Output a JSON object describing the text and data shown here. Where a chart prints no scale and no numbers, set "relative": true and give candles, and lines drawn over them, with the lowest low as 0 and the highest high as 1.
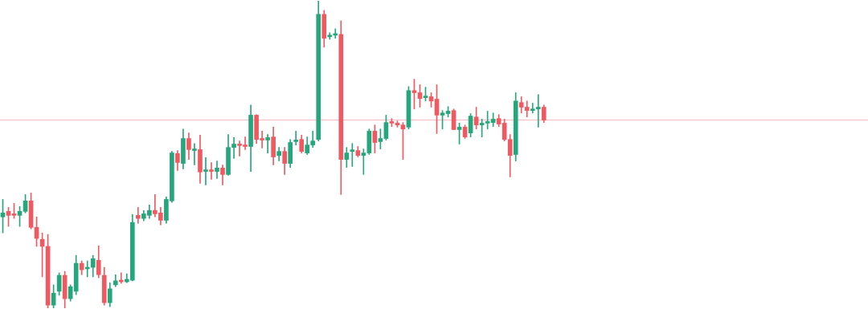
{
  "chart_data": {
    "type": "candlestick",
    "relative": true,
    "categories": [
      null,
      null,
      null,
      null,
      null,
      null,
      null,
      null,
      null,
      null,
      null,
      null,
      null,
      null,
      null,
      null,
      null,
      null,
      null,
      null,
      null,
      null,
      null,
      null,
      null,
      null,
      null,
      null,
      null,
      null,
      null,
      null,
      null,
      null,
      null,
      null,
      null,
      null,
      null,
      null,
      null,
      null,
      null,
      null,
      null,
      null,
      null,
      null,
      null,
      null,
      null,
      null,
      null,
      null,
      null,
      null,
      null,
      null,
      null,
      null,
      null,
      null,
      null,
      null,
      null,
      null,
      null,
      null,
      null,
      null,
      null,
      null,
      null,
      null,
      null,
      null,
      null,
      null,
      null,
      null,
      null,
      null,
      null,
      null,
      null,
      null,
      null,
      null,
      null,
      null,
      null,
      null,
      null,
      null,
      null,
      null,
      null,
      null,
      null,
      null,
      null,
      null,
      null,
      null,
      null,
      null,
      null,
      null,
      null,
      null,
      null,
      null,
      null,
      null,
      null,
      null,
      null,
      null,
      null,
      null,
      null,
      null,
      null,
      null,
      null,
      null,
      null,
      null,
      null,
      null,
      null,
      null,
      null,
      null,
      null,
      null,
      null,
      null,
      null,
      null,
      null,
      null,
      null,
      null,
      null,
      null,
      null,
      null,
      null,
      null,
      null,
      null,
      null,
      null
    ],
    "colors": [
      "#26a67c",
      "#ef5a62",
      "#ef5a62",
      "#26a67c",
      "#26a67c",
      "#ef5a62",
      "#ef5a62",
      "#ef5a62",
      "#ef5a62",
      "#26a67c",
      "#26a67c",
      "#ef5a62",
      "#26a67c",
      "#26a67c",
      "#ef5a62",
      "#26a67c",
      "#26a67c",
      "#ef5a62",
      "#ef5a62",
      "#26a67c",
      "#26a67c",
      "#ef5a62",
      "#26a67c",
      "#26a67c",
      "#ef5a62",
      "#26a67c",
      "#26a67c",
      "#ef5a62",
      "#ef5a62",
      "#26a67c",
      "#26a67c",
      "#ef5a62",
      "#26a67c",
      "#ef5a62",
      "#26a67c",
      "#ef5a62",
      "#26a67c",
      "#ef5a62",
      "#26a67c",
      "#ef5a62",
      "#26a67c",
      "#26a67c",
      "#ef5a62",
      "#ef5a62",
      "#26a67c",
      "#ef5a62",
      "#ef5a62",
      "#26a67c",
      "#ef5a62",
      "#26a67c",
      "#ef5a62",
      "#26a67c",
      "#26a67c",
      "#ef5a62",
      "#26a67c",
      "#26a67c",
      "#26a67c",
      "#ef5a62",
      "#26a67c",
      "#26a67c",
      "#ef5a62",
      "#26a67c",
      "#26a67c",
      "#ef5a62",
      "#26a67c",
      "#26a67c",
      "#ef5a62",
      "#26a67c",
      "#26a67c",
      "#ef5a62",
      "#ef5a62",
      "#ef5a62",
      "#26a67c",
      "#ef5a62",
      "#ef5a62",
      "#26a67c",
      "#ef5a62",
      "#ef5a62",
      "#26a67c",
      "#26a67c",
      "#ef5a62",
      "#26a67c",
      "#ef5a62",
      "#26a67c",
      "#ef5a62",
      "#26a67c",
      "#26a67c",
      "#26a67c",
      "#ef5a62",
      "#ef5a62",
      "#ef5a62",
      "#26a67c",
      "#ef5a62",
      "#ef5a62",
      "#26a67c",
      "#26a67c",
      "#ef5a62",
      null,
      null,
      null,
      null,
      null,
      null,
      null,
      null,
      null,
      null,
      null,
      null,
      null,
      null,
      null,
      null,
      null,
      null,
      null,
      null,
      null,
      null,
      null,
      null,
      null,
      null,
      null,
      null,
      null,
      null,
      null,
      null,
      null,
      null,
      null,
      null,
      null,
      null,
      null,
      null,
      null,
      null,
      null,
      null,
      null,
      null,
      null,
      null,
      null,
      null,
      null,
      null,
      null,
      null,
      null,
      null,
      null
    ],
    "ohlc": [
      [
        0.297,
        0.354,
        0.245,
        0.31
      ],
      [
        0.315,
        0.328,
        0.266,
        0.302
      ],
      [
        0.305,
        0.341,
        0.292,
        0.302
      ],
      [
        0.302,
        0.331,
        0.266,
        0.315
      ],
      [
        0.315,
        0.37,
        0.31,
        0.349
      ],
      [
        0.349,
        0.375,
        0.258,
        0.263
      ],
      [
        0.263,
        0.297,
        0.201,
        0.227
      ],
      [
        0.224,
        0.245,
        0.102,
        0.201
      ],
      [
        0.201,
        0.24,
        0,
        0.01
      ],
      [
        0.01,
        0.076,
        0,
        0.049
      ],
      [
        0.055,
        0.115,
        0.042,
        0.107
      ],
      [
        0.107,
        0.12,
        0,
        0.031
      ],
      [
        0.031,
        0.076,
        0.023,
        0.07
      ],
      [
        0.055,
        0.172,
        0.044,
        0.146
      ],
      [
        0.146,
        0.154,
        0.109,
        0.125
      ],
      [
        0.128,
        0.154,
        0.102,
        0.133
      ],
      [
        0.133,
        0.172,
        0.102,
        0.161
      ],
      [
        0.156,
        0.203,
        0.099,
        0.109
      ],
      [
        0.107,
        0.133,
        0.01,
        0.018
      ],
      [
        0.018,
        0.083,
        0.005,
        0.063
      ],
      [
        0.076,
        0.109,
        0.07,
        0.089
      ],
      [
        0.089,
        0.115,
        0.081,
        0.086
      ],
      [
        0.086,
        0.112,
        0.083,
        0.094
      ],
      [
        0.091,
        0.305,
        0.089,
        0.279
      ],
      [
        0.302,
        0.328,
        0.276,
        0.292
      ],
      [
        0.292,
        0.318,
        0.284,
        0.307
      ],
      [
        0.302,
        0.336,
        0.292,
        0.318
      ],
      [
        0.318,
        0.37,
        0.297,
        0.307
      ],
      [
        0.31,
        0.328,
        0.271,
        0.286
      ],
      [
        0.286,
        0.362,
        0.276,
        0.354
      ],
      [
        0.349,
        0.51,
        0.344,
        0.505
      ],
      [
        0.503,
        0.513,
        0.448,
        0.474
      ],
      [
        0.471,
        0.583,
        0.453,
        0.552
      ],
      [
        0.552,
        0.57,
        0.484,
        0.516
      ],
      [
        0.513,
        0.536,
        0.466,
        0.518
      ],
      [
        0.516,
        0.563,
        0.406,
        0.443
      ],
      [
        0.445,
        0.49,
        0.401,
        0.448
      ],
      [
        0.448,
        0.474,
        0.419,
        0.445
      ],
      [
        0.445,
        0.479,
        0.422,
        0.456
      ],
      [
        0.456,
        0.466,
        0.401,
        0.435
      ],
      [
        0.435,
        0.565,
        0.432,
        0.523
      ],
      [
        0.523,
        0.555,
        0.487,
        0.534
      ],
      [
        0.534,
        0.544,
        0.495,
        0.529
      ],
      [
        0.529,
        0.557,
        0.516,
        0.526
      ],
      [
        0.526,
        0.661,
        0.445,
        0.628
      ],
      [
        0.628,
        0.63,
        0.536,
        0.549
      ],
      [
        0.552,
        0.576,
        0.521,
        0.547
      ],
      [
        0.547,
        0.565,
        0.505,
        0.555
      ],
      [
        0.557,
        0.589,
        0.466,
        0.492
      ],
      [
        0.497,
        0.523,
        0.479,
        0.51
      ],
      [
        0.51,
        0.523,
        0.435,
        0.471
      ],
      [
        0.471,
        0.549,
        0.458,
        0.539
      ],
      [
        0.542,
        0.576,
        0.531,
        0.547
      ],
      [
        0.549,
        0.563,
        0.505,
        0.51
      ],
      [
        0.505,
        0.557,
        0.5,
        0.531
      ],
      [
        0.531,
        0.576,
        0.523,
        0.544
      ],
      [
        0.549,
        1,
        0.544,
        0.956
      ],
      [
        0.956,
        0.969,
        0.849,
        0.878
      ],
      [
        0.883,
        0.896,
        0.875,
        0.888
      ],
      [
        0.888,
        0.909,
        0.878,
        0.891
      ],
      [
        0.891,
        0.935,
        0.37,
        0.484
      ],
      [
        0.484,
        0.523,
        0.458,
        0.505
      ],
      [
        0.51,
        0.536,
        0.461,
        0.513
      ],
      [
        0.513,
        0.526,
        0.492,
        0.497
      ],
      [
        0.497,
        0.518,
        0.435,
        0.505
      ],
      [
        0.505,
        0.583,
        0.5,
        0.576
      ],
      [
        0.576,
        0.596,
        0.505,
        0.539
      ],
      [
        0.542,
        0.583,
        0.518,
        0.552
      ],
      [
        0.552,
        0.628,
        0.547,
        0.604
      ],
      [
        0.607,
        0.617,
        0.591,
        0.602
      ],
      [
        0.602,
        0.609,
        0.589,
        0.596
      ],
      [
        0.596,
        0.604,
        0.484,
        0.583
      ],
      [
        0.589,
        0.721,
        0.583,
        0.708
      ],
      [
        0.708,
        0.745,
        0.648,
        0.701
      ],
      [
        0.701,
        0.727,
        0.654,
        0.682
      ],
      [
        0.685,
        0.719,
        0.674,
        0.688
      ],
      [
        0.688,
        0.701,
        0.654,
        0.674
      ],
      [
        0.68,
        0.727,
        0.568,
        0.628
      ],
      [
        0.628,
        0.643,
        0.583,
        0.635
      ],
      [
        0.633,
        0.656,
        0.622,
        0.641
      ],
      [
        0.643,
        0.648,
        0.581,
        0.581
      ],
      [
        0.581,
        0.602,
        0.534,
        0.589
      ],
      [
        0.589,
        0.596,
        0.552,
        0.557
      ],
      [
        0.57,
        0.633,
        0.557,
        0.625
      ],
      [
        0.622,
        0.654,
        0.583,
        0.596
      ],
      [
        0.596,
        0.615,
        0.557,
        0.602
      ],
      [
        0.602,
        0.641,
        0.583,
        0.607
      ],
      [
        0.604,
        0.635,
        0.591,
        0.615
      ],
      [
        0.617,
        0.63,
        0.591,
        0.599
      ],
      [
        0.602,
        0.615,
        0.544,
        0.549
      ],
      [
        0.549,
        0.565,
        0.427,
        0.497
      ],
      [
        0.5,
        0.701,
        0.479,
        0.674
      ],
      [
        0.669,
        0.688,
        0.635,
        0.654
      ],
      [
        0.654,
        0.674,
        0.622,
        0.643
      ],
      [
        0.643,
        0.667,
        0.635,
        0.648
      ],
      [
        0.648,
        0.695,
        0.589,
        0.654
      ],
      [
        0.654,
        0.661,
        0.604,
        0.612
      ],
      null,
      null,
      null,
      null,
      null,
      null,
      null,
      null,
      null,
      null,
      null,
      null,
      null,
      null,
      null,
      null,
      null,
      null,
      null,
      null,
      null,
      null,
      null,
      null,
      null,
      null,
      null,
      null,
      null,
      null,
      null,
      null,
      null,
      null,
      null,
      null,
      null,
      null,
      null,
      null,
      null,
      null,
      null,
      null,
      null,
      null,
      null,
      null,
      null,
      null,
      null,
      null,
      null,
      null,
      null,
      null,
      null
    ],
    "ref_lines": [
      {
        "axis": "y",
        "value": 0.612,
        "color": "#f5b8c2"
      }
    ]
  }
}
